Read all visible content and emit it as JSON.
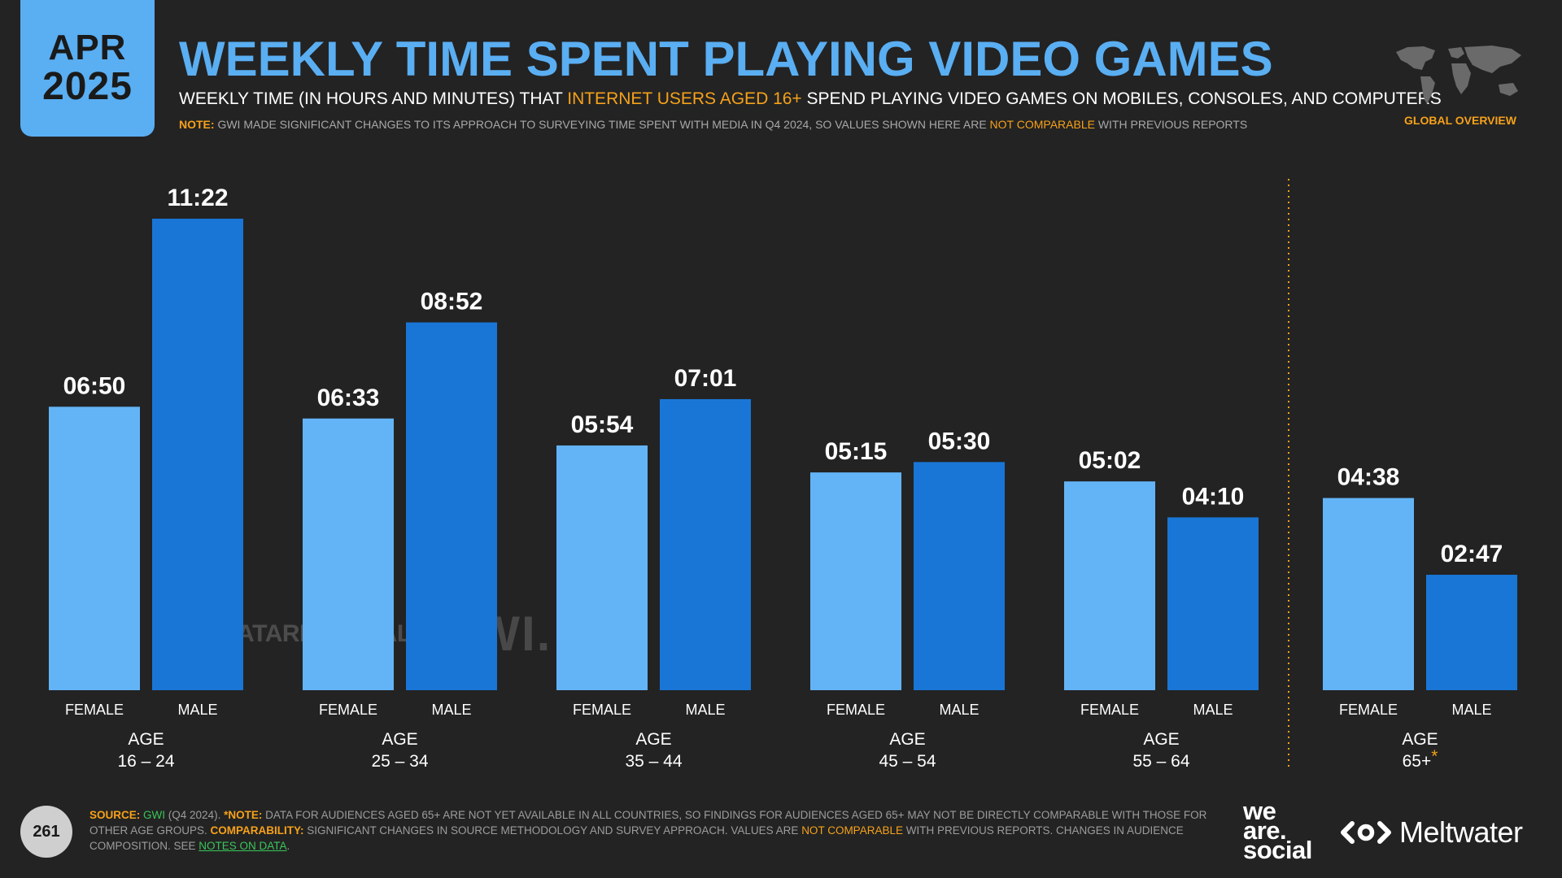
{
  "header": {
    "date_month": "APR",
    "date_year": "2025",
    "title": "WEEKLY TIME SPENT PLAYING VIDEO GAMES",
    "subtitle_pre": "WEEKLY TIME (IN HOURS AND MINUTES) THAT ",
    "subtitle_highlight": "INTERNET USERS AGED 16+",
    "subtitle_post": " SPEND PLAYING VIDEO GAMES ON MOBILES, CONSOLES, AND COMPUTERS",
    "note_label": "NOTE:",
    "note_pre": " GWI MADE SIGNIFICANT CHANGES TO ITS APPROACH TO SURVEYING TIME SPENT WITH MEDIA IN Q4 2024, SO VALUES SHOWN HERE ARE ",
    "note_highlight": "NOT COMPARABLE",
    "note_post": " WITH PREVIOUS REPORTS",
    "global_label": "GLOBAL OVERVIEW"
  },
  "colors": {
    "background": "#232323",
    "female_bar": "#63b4f6",
    "male_bar": "#1976d6",
    "accent": "#f6a11a",
    "title": "#5aaef2"
  },
  "chart_data": {
    "type": "bar",
    "unit": "hours:minutes per week",
    "series_names": [
      "FEMALE",
      "MALE"
    ],
    "groups": [
      {
        "age_label": "AGE",
        "range": "16 – 24",
        "asterisk": "",
        "female": "06:50",
        "male": "11:22",
        "female_minutes": 410,
        "male_minutes": 682
      },
      {
        "age_label": "AGE",
        "range": "25 – 34",
        "asterisk": "",
        "female": "06:33",
        "male": "08:52",
        "female_minutes": 393,
        "male_minutes": 532
      },
      {
        "age_label": "AGE",
        "range": "35 – 44",
        "asterisk": "",
        "female": "05:54",
        "male": "07:01",
        "female_minutes": 354,
        "male_minutes": 421
      },
      {
        "age_label": "AGE",
        "range": "45 – 54",
        "asterisk": "",
        "female": "05:15",
        "male": "05:30",
        "female_minutes": 315,
        "male_minutes": 330
      },
      {
        "age_label": "AGE",
        "range": "55 – 64",
        "asterisk": "",
        "female": "05:02",
        "male": "04:10",
        "female_minutes": 302,
        "male_minutes": 250
      },
      {
        "age_label": "AGE",
        "range": "65+",
        "asterisk": "*",
        "female": "04:38",
        "male": "02:47",
        "female_minutes": 278,
        "male_minutes": 167
      }
    ],
    "ylim": [
      0,
      682
    ]
  },
  "watermark": {
    "datareportal": "DATAREPORTAL",
    "gwi": "GWI."
  },
  "footer": {
    "page_number": "261",
    "source_label": "SOURCE:",
    "source_name": "GWI",
    "source_period": " (Q4 2024). ",
    "note_label": "*NOTE:",
    "note_text": " DATA FOR AUDIENCES AGED 65+ ARE NOT YET AVAILABLE IN ALL COUNTRIES, SO FINDINGS FOR AUDIENCES AGED 65+ MAY NOT BE DIRECTLY COMPARABLE WITH THOSE FOR OTHER AGE GROUPS. ",
    "comparability_label": "COMPARABILITY:",
    "comparability_pre": " SIGNIFICANT CHANGES IN SOURCE METHODOLOGY AND SURVEY APPROACH. VALUES ARE ",
    "comparability_highlight": "NOT COMPARABLE",
    "comparability_post": " WITH PREVIOUS REPORTS. CHANGES IN AUDIENCE COMPOSITION. SEE ",
    "notes_link": "NOTES ON DATA",
    "end": ".",
    "brand_was_1": "we",
    "brand_was_2": "are.",
    "brand_was_3": "social",
    "brand_meltwater": "Meltwater"
  }
}
